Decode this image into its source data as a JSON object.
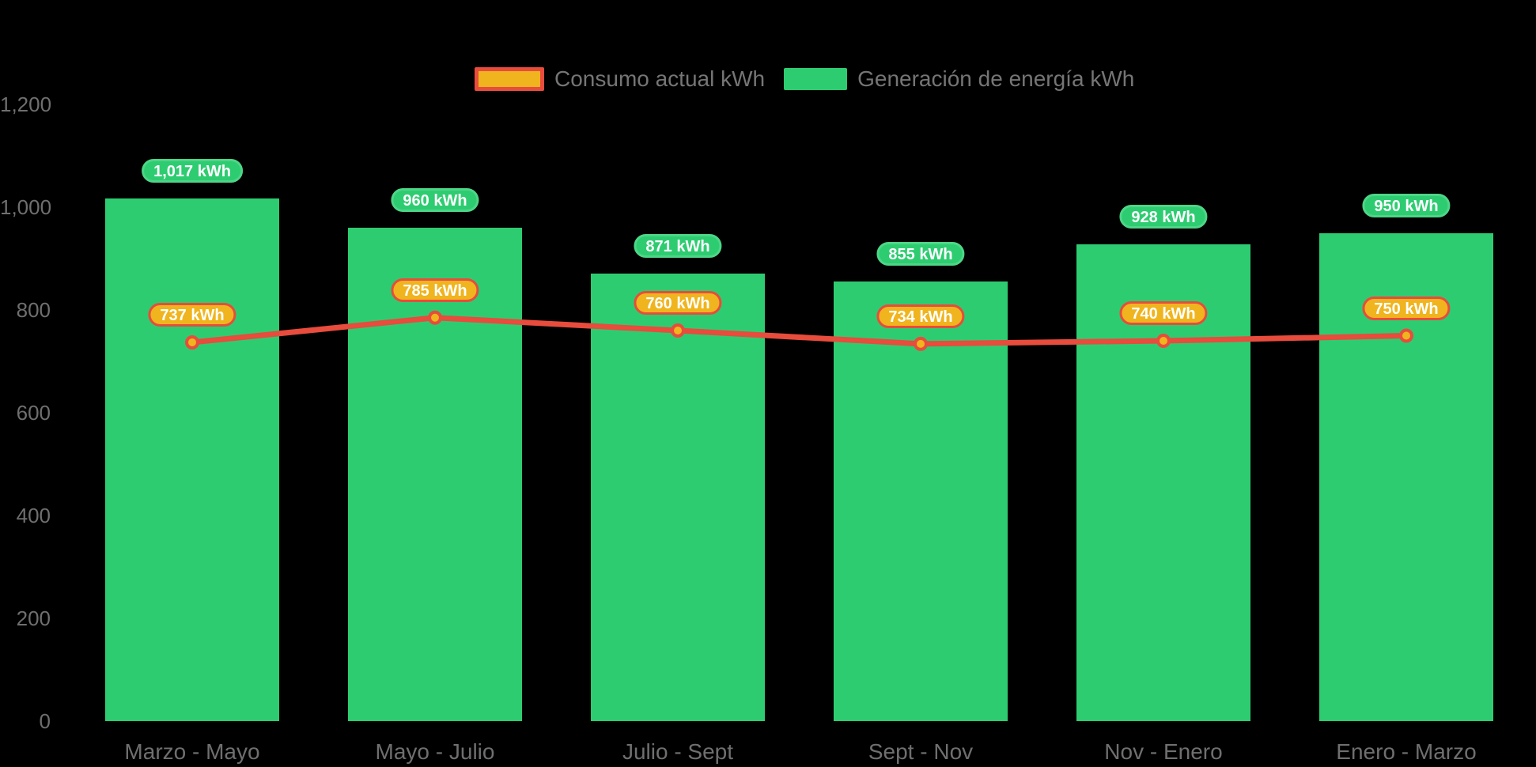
{
  "app": {
    "background": "#000000"
  },
  "legend": {
    "items": [
      {
        "label": "Consumo actual kWh",
        "series": "consumption"
      },
      {
        "label": "Generación de energía kWh",
        "series": "generation"
      }
    ]
  },
  "colors": {
    "background": "#000000",
    "generation_green": "#2ECC71",
    "generation_pill_border": "#4DD687",
    "consumption_gold": "#F0B41E",
    "consumption_red": "#E74C3C",
    "axis_text": "#6F6F6F",
    "legend_text": "#757575",
    "pill_text": "#FFFFFF"
  },
  "chart_data": {
    "type": "bar",
    "subtype": "bar-with-line-overlay",
    "categories": [
      "Marzo - Mayo",
      "Mayo - Julio",
      "Julio - Sept",
      "Sept - Nov",
      "Nov - Enero",
      "Enero - Marzo"
    ],
    "series": [
      {
        "name": "Consumo actual kWh",
        "type": "line",
        "color": "#E74C3C",
        "marker_color": "#F0B41E",
        "values": [
          737,
          785,
          760,
          734,
          740,
          750
        ]
      },
      {
        "name": "Generación de energía kWh",
        "type": "bar",
        "color": "#2ECC71",
        "values": [
          1017,
          960,
          871,
          855,
          928,
          950
        ]
      }
    ],
    "unit": "kWh",
    "data_label_suffix": " kWh",
    "ylim": [
      0,
      1200
    ],
    "yticks": [
      0,
      200,
      400,
      600,
      800,
      1000,
      1200
    ],
    "grid": false,
    "legend_position": "top-center",
    "background": "black"
  }
}
